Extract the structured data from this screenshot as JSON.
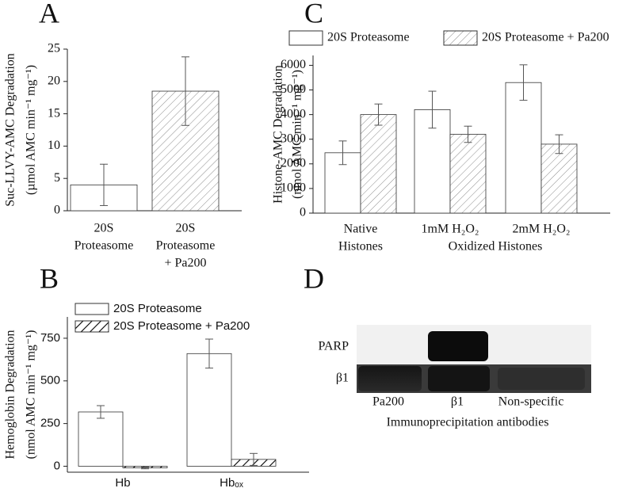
{
  "chart_data": [
    {
      "type": "bar",
      "letter": "A",
      "ylabel": [
        "Suc-LLVY-AMC Degradation",
        "(µmol AMC min⁻¹ mg⁻¹)"
      ],
      "categories": [
        [
          "20S",
          "Proteasome"
        ],
        [
          "20S",
          "Proteasome",
          "+ Pa200"
        ]
      ],
      "values": [
        4,
        18.5
      ],
      "errors": [
        3.2,
        5.3
      ],
      "colors": [
        "#ffffff",
        "#ffffff"
      ],
      "hatches": [
        null,
        "#8c8c8c"
      ],
      "ylim": [
        0,
        25
      ],
      "yticks": [
        0,
        5,
        10,
        15,
        20,
        25
      ]
    },
    {
      "type": "bar",
      "letter": "B",
      "ylabel": [
        "Hemoglobin Degradation",
        "(nmol AMC min⁻¹ mg⁻¹)"
      ],
      "categories": [
        [
          "Hb"
        ],
        [
          "Hbₒₓ"
        ]
      ],
      "series": [
        {
          "name": "20S Proteasome",
          "color": "#ffffff",
          "hatch": null,
          "values": [
            318,
            660
          ],
          "errors": [
            37,
            85
          ]
        },
        {
          "name": "20S Proteasome + Pa200",
          "color": "#ffffff",
          "hatch": "#000000",
          "values": [
            -10,
            40
          ],
          "errors": [
            5,
            35
          ]
        }
      ],
      "legend": "top-left",
      "ylim": [
        -35,
        875
      ],
      "yticks": [
        0,
        250,
        500,
        750
      ]
    },
    {
      "type": "bar",
      "letter": "C",
      "ylabel": [
        "Histone-AMC Degradation",
        "(nmol AMC min⁻¹ mg⁻¹)"
      ],
      "categories": [
        [
          "Native",
          "Histones"
        ],
        [
          "1mM H₂O₂"
        ],
        [
          "2mM H₂O₂"
        ]
      ],
      "group_label": "Oxidized Histones",
      "series": [
        {
          "name": "20S Proteasome",
          "color": "#ffffff",
          "hatch": null,
          "values": [
            2450,
            4200,
            5300
          ],
          "errors": [
            480,
            750,
            720
          ]
        },
        {
          "name": "20S Proteasome + Pa200",
          "color": "#ffffff",
          "hatch": "#8c8c8c",
          "values": [
            4000,
            3200,
            2800
          ],
          "errors": [
            430,
            330,
            380
          ]
        }
      ],
      "legend": "top",
      "ylim": [
        0,
        6400
      ],
      "yticks": [
        0,
        1000,
        2000,
        3000,
        4000,
        5000,
        6000
      ]
    },
    {
      "type": "blot",
      "letter": "D",
      "row_labels": [
        "PARP",
        "β1"
      ],
      "lanes": [
        "Pa200",
        "β1",
        "Non-specific"
      ],
      "xlabel": "Immunoprecipitation antibodies"
    }
  ]
}
